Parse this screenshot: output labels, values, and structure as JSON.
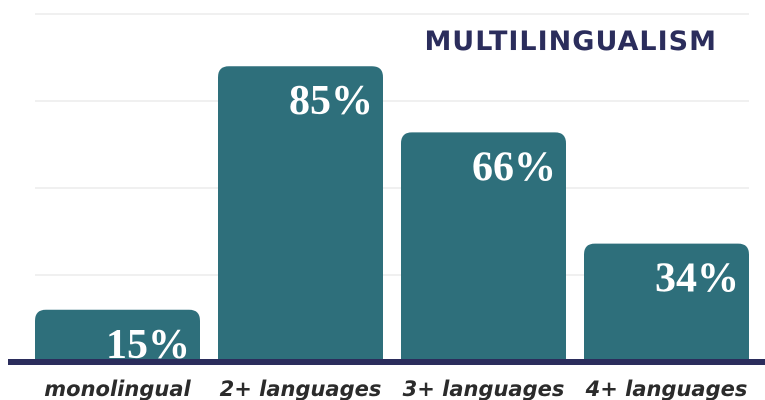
{
  "chart_data": {
    "type": "bar",
    "title": "MULTILINGUALISM",
    "categories": [
      "monolingual",
      "2+ languages",
      "3+ languages",
      "4+ languages"
    ],
    "values": [
      15,
      85,
      66,
      34
    ],
    "value_labels": [
      "15%",
      "85%",
      "66%",
      "34%"
    ],
    "color": "#2e6f7b",
    "ylim": [
      0,
      100
    ],
    "yticks": [
      0,
      25,
      50,
      75,
      100
    ],
    "grid": true
  }
}
